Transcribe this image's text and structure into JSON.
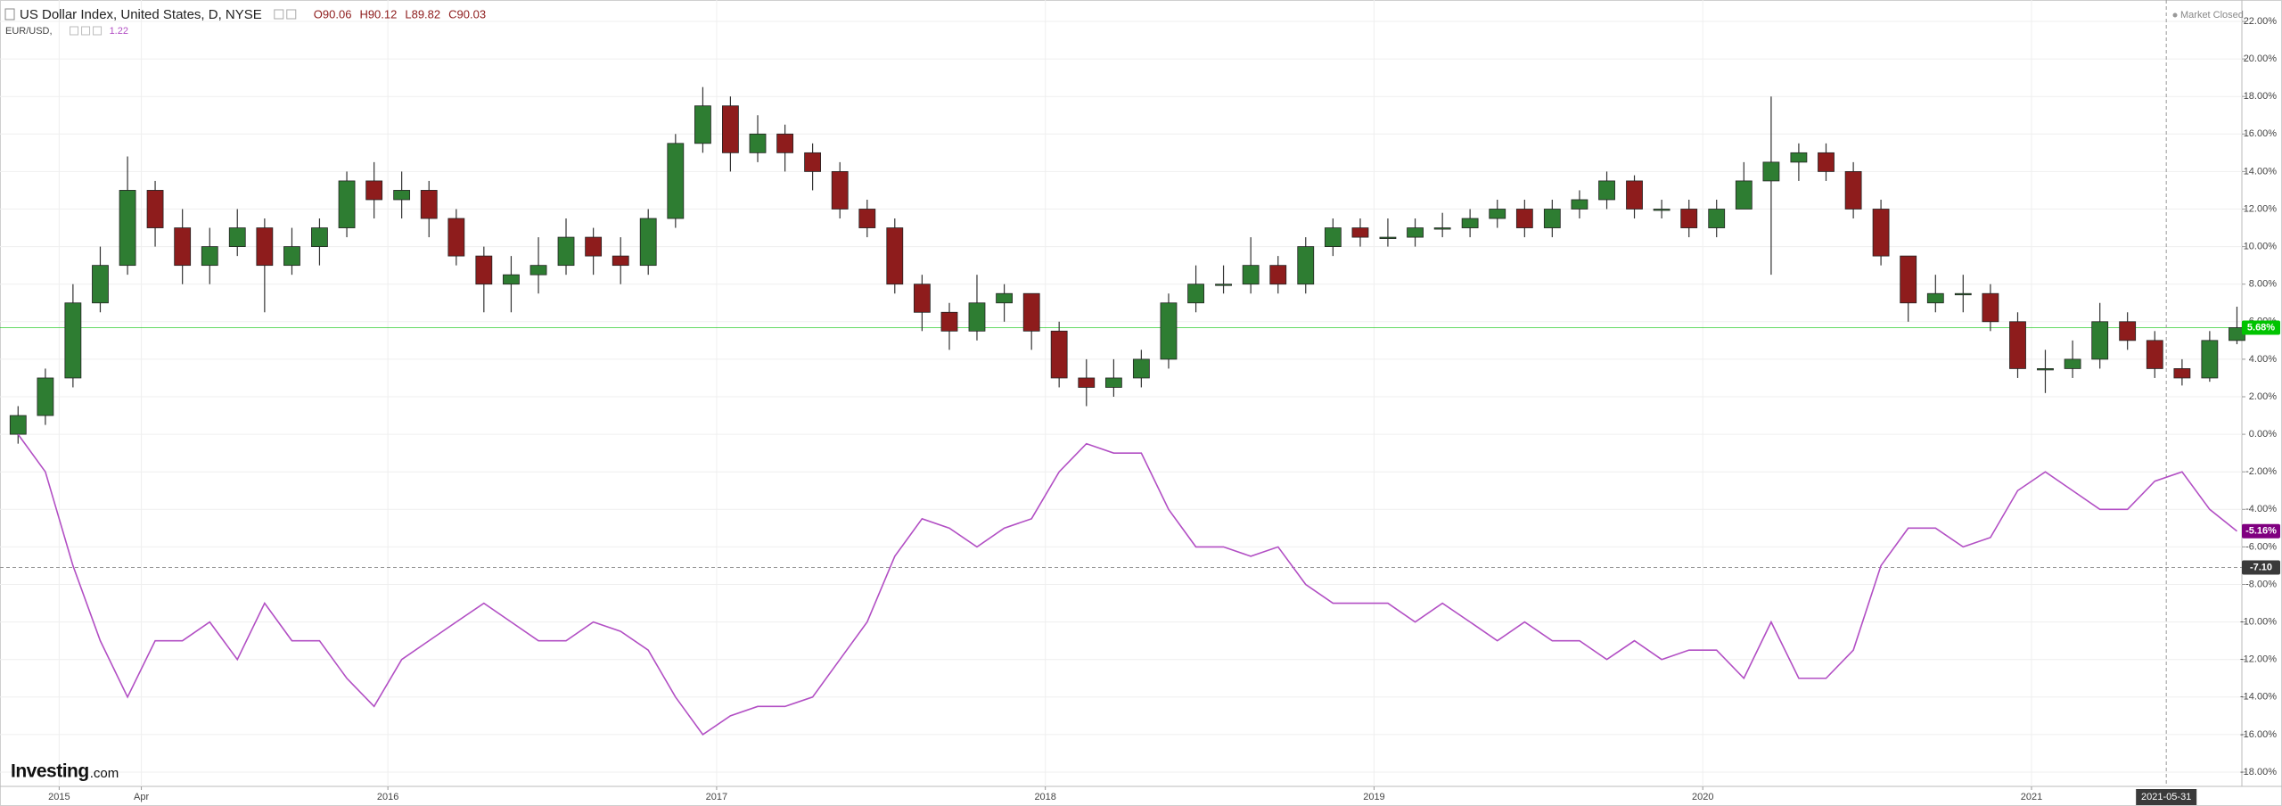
{
  "chart_data": {
    "type": "candlestick",
    "legend_values": [
      "O90.06",
      "H90.12",
      "L89.82",
      "C90.03"
    ],
    "status": "Market Closed",
    "logo": {
      "name": "Investing",
      "suffix": ".com"
    },
    "x": [
      2014.875,
      2014.958,
      2015.042,
      2015.125,
      2015.208,
      2015.292,
      2015.375,
      2015.458,
      2015.542,
      2015.625,
      2015.708,
      2015.792,
      2015.875,
      2015.958,
      2016.042,
      2016.125,
      2016.208,
      2016.292,
      2016.375,
      2016.458,
      2016.542,
      2016.625,
      2016.708,
      2016.792,
      2016.875,
      2016.958,
      2017.042,
      2017.125,
      2017.208,
      2017.292,
      2017.375,
      2017.458,
      2017.542,
      2017.625,
      2017.708,
      2017.792,
      2017.875,
      2017.958,
      2018.042,
      2018.125,
      2018.208,
      2018.292,
      2018.375,
      2018.458,
      2018.542,
      2018.625,
      2018.708,
      2018.792,
      2018.875,
      2018.958,
      2019.042,
      2019.125,
      2019.208,
      2019.292,
      2019.375,
      2019.458,
      2019.542,
      2019.625,
      2019.708,
      2019.792,
      2019.875,
      2019.958,
      2020.042,
      2020.125,
      2020.208,
      2020.292,
      2020.375,
      2020.458,
      2020.542,
      2020.625,
      2020.708,
      2020.792,
      2020.875,
      2020.958,
      2021.042,
      2021.125,
      2021.208,
      2021.292,
      2021.375,
      2021.458,
      2021.542,
      2021.625
    ],
    "series": [
      {
        "name": "US Dollar Index, United States, D, NYSE",
        "type": "candlestick",
        "up_color": "#2e7d32",
        "down_color": "#8e1c1c",
        "open": [
          0,
          1,
          3,
          7,
          9,
          13,
          11,
          9,
          10,
          11,
          9,
          10,
          11,
          13.5,
          12.5,
          13,
          11.5,
          9.5,
          8,
          8.5,
          9,
          10.5,
          9.5,
          9,
          11.5,
          15.5,
          17.5,
          15,
          16,
          15,
          14,
          12,
          11,
          8,
          6.5,
          5.5,
          7,
          7.5,
          5.5,
          3,
          2.5,
          3,
          4,
          7,
          8,
          8,
          9,
          8,
          10,
          11,
          10.5,
          10.5,
          11,
          11,
          11.5,
          12,
          11,
          12,
          12.5,
          13.5,
          12,
          12,
          11,
          12,
          13.5,
          14.5,
          15,
          14,
          12,
          9.5,
          7,
          7.5,
          7.5,
          6,
          3.5,
          3.5,
          4,
          6,
          5,
          3.5,
          3,
          5
        ],
        "high": [
          1.5,
          3.5,
          8,
          10,
          14.8,
          13.5,
          12,
          11,
          12,
          11.5,
          11,
          11.5,
          14,
          14.5,
          14,
          13.5,
          12,
          10,
          9.5,
          10.5,
          11.5,
          11,
          10.5,
          12,
          16,
          18.5,
          18,
          17,
          16.5,
          15.5,
          14.5,
          12.5,
          11.5,
          8.5,
          7,
          8.5,
          8,
          7.5,
          6,
          4,
          4,
          4.5,
          7.5,
          9,
          9,
          10.5,
          9.5,
          10.5,
          11.5,
          11.5,
          11.5,
          11.5,
          11.8,
          12,
          12.5,
          12.5,
          12.5,
          13,
          14,
          13.8,
          12.5,
          12.5,
          12.5,
          14.5,
          18,
          15.5,
          15.5,
          14.5,
          12.5,
          9.5,
          8.5,
          8.5,
          8,
          6.5,
          4.5,
          5,
          7,
          6.5,
          5.5,
          4,
          5.5,
          6.8
        ],
        "low": [
          -0.5,
          0.5,
          2.5,
          6.5,
          8.5,
          10,
          8,
          8,
          9.5,
          6.5,
          8.5,
          9,
          10.5,
          11.5,
          11.5,
          10.5,
          9,
          6.5,
          6.5,
          7.5,
          8.5,
          8.5,
          8,
          8.5,
          11,
          15,
          14,
          14.5,
          14,
          13,
          11.5,
          10.5,
          7.5,
          5.5,
          4.5,
          5,
          6,
          4.5,
          2.5,
          1.5,
          2,
          2.5,
          3.5,
          6.5,
          7.5,
          7.5,
          7.5,
          7.5,
          9.5,
          10,
          10,
          10,
          10.5,
          10.5,
          11,
          10.5,
          10.5,
          11.5,
          12,
          11.5,
          11.5,
          10.5,
          10.5,
          12,
          8.5,
          13.5,
          13.5,
          11.5,
          9,
          6,
          6.5,
          6.5,
          5.5,
          3,
          2.2,
          3,
          3.5,
          4.5,
          3,
          2.6,
          2.8,
          4.8
        ],
        "close": [
          1,
          3,
          7,
          9,
          13,
          11,
          9,
          10,
          11,
          9,
          10,
          11,
          13.5,
          12.5,
          13,
          11.5,
          9.5,
          8,
          8.5,
          9,
          10.5,
          9.5,
          9,
          11.5,
          15.5,
          17.5,
          15,
          16,
          15,
          14,
          12,
          11,
          8,
          6.5,
          5.5,
          7,
          7.5,
          5.5,
          3,
          2.5,
          3,
          4,
          7,
          8,
          8,
          9,
          8,
          10,
          11,
          10.5,
          10.5,
          11,
          11,
          11.5,
          12,
          11,
          12,
          12.5,
          13.5,
          12,
          12,
          11,
          12,
          13.5,
          14.5,
          15,
          14,
          12,
          9.5,
          7,
          7.5,
          7.5,
          6,
          3.5,
          3.5,
          4,
          6,
          5,
          3.5,
          3,
          5,
          5.68
        ]
      },
      {
        "name": "EUR/USD,",
        "type": "line",
        "color": "#b24fc4",
        "value_label": "1.22",
        "values": [
          0,
          -2,
          -7,
          -11,
          -14,
          -11,
          -11,
          -10,
          -12,
          -9,
          -11,
          -11,
          -13,
          -14.5,
          -12,
          -11,
          -10,
          -9,
          -10,
          -11,
          -11,
          -10,
          -10.5,
          -11.5,
          -14,
          -16,
          -15,
          -14.5,
          -14.5,
          -14,
          -12,
          -10,
          -6.5,
          -4.5,
          -5,
          -6,
          -5,
          -4.5,
          -2,
          -0.5,
          -1,
          -1,
          -4,
          -6,
          -6,
          -6.5,
          -6,
          -8,
          -9,
          -9,
          -9,
          -10,
          -9,
          -10,
          -11,
          -10,
          -11,
          -11,
          -12,
          -11,
          -12,
          -11.5,
          -11.5,
          -13,
          -10,
          -13,
          -13,
          -11.5,
          -7,
          -5,
          -5,
          -6,
          -5.5,
          -3,
          -2,
          -3,
          -4,
          -4,
          -2.5,
          -2,
          -4,
          -5.16
        ]
      }
    ],
    "price_lines": [
      {
        "value": 5.68,
        "label": "5.68%",
        "color": "#00c400",
        "line": true
      },
      {
        "value": -5.16,
        "label": "-5.16%",
        "color": "#800080",
        "line": false
      }
    ],
    "crosshair": {
      "x": 2021.41,
      "x_label": "2021-05-31",
      "y": -7.1,
      "y_label": "-7.10"
    },
    "xlim": [
      2014.82,
      2021.64
    ],
    "ylim": [
      -18.76,
      23.14
    ],
    "xticks": [
      {
        "value": 2015,
        "label": "2015"
      },
      {
        "value": 2015.25,
        "label": "Apr"
      },
      {
        "value": 2016,
        "label": "2016"
      },
      {
        "value": 2017,
        "label": "2017"
      },
      {
        "value": 2018,
        "label": "2018"
      },
      {
        "value": 2019,
        "label": "2019"
      },
      {
        "value": 2020,
        "label": "2020"
      },
      {
        "value": 2021,
        "label": "2021"
      }
    ],
    "yticks": [
      {
        "value": 22,
        "label": "22.00%"
      },
      {
        "value": 20,
        "label": "20.00%"
      },
      {
        "value": 18,
        "label": "18.00%"
      },
      {
        "value": 16,
        "label": "16.00%"
      },
      {
        "value": 14,
        "label": "14.00%"
      },
      {
        "value": 12,
        "label": "12.00%"
      },
      {
        "value": 10,
        "label": "10.00%"
      },
      {
        "value": 8,
        "label": "8.00%"
      },
      {
        "value": 6,
        "label": "6.00%"
      },
      {
        "value": 4,
        "label": "4.00%"
      },
      {
        "value": 2,
        "label": "2.00%"
      },
      {
        "value": 0,
        "label": "0.00%"
      },
      {
        "value": -2,
        "label": "-2.00%"
      },
      {
        "value": -4,
        "label": "-4.00%"
      },
      {
        "value": -6,
        "label": "-6.00%"
      },
      {
        "value": -8,
        "label": "-8.00%"
      },
      {
        "value": -10,
        "label": "-10.00%"
      },
      {
        "value": -12,
        "label": "-12.00%"
      },
      {
        "value": -14,
        "label": "-14.00%"
      },
      {
        "value": -16,
        "label": "-16.00%"
      },
      {
        "value": -18,
        "label": "-18.00%"
      }
    ],
    "grid": true
  }
}
